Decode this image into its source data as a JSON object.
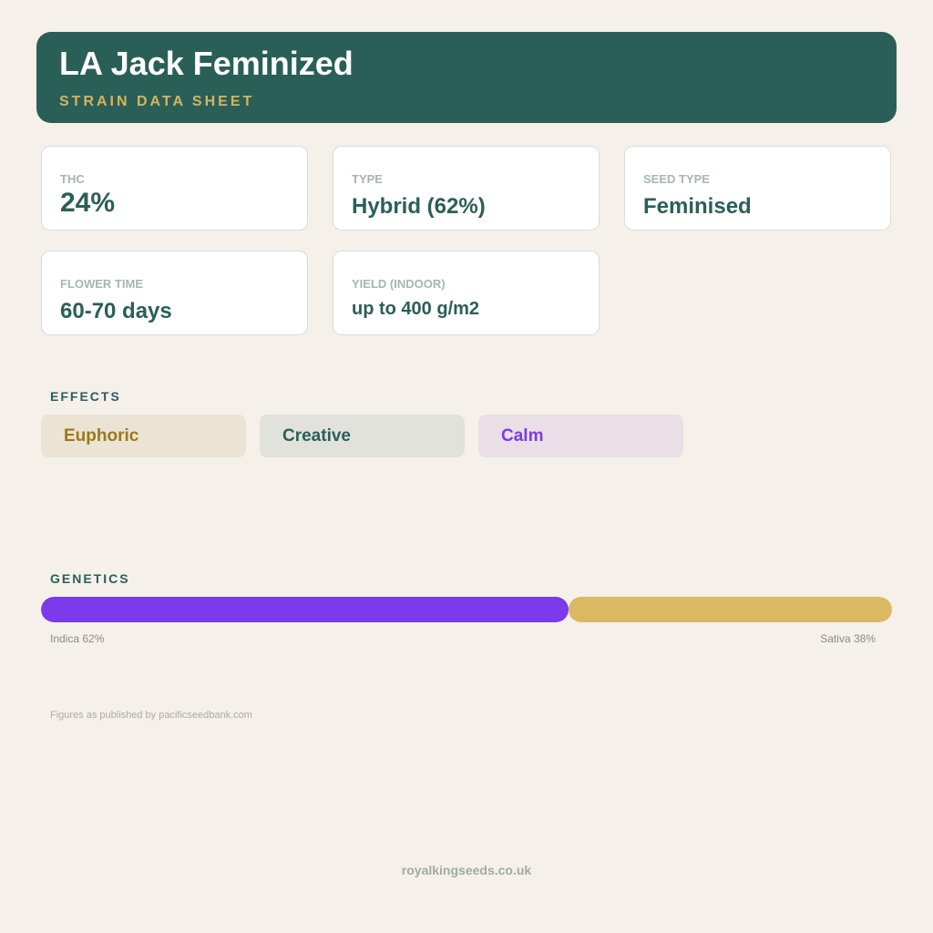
{
  "header": {
    "title": "LA Jack Feminized",
    "subtitle": "STRAIN DATA SHEET"
  },
  "stats": [
    {
      "label": "THC",
      "value": "24%"
    },
    {
      "label": "TYPE",
      "value": "Hybrid (62%)"
    },
    {
      "label": "SEED TYPE",
      "value": "Feminised"
    },
    {
      "label": "FLOWER TIME",
      "value": "60-70 days"
    },
    {
      "label": "YIELD (INDOOR)",
      "value": "up to 400 g/m2"
    }
  ],
  "effects": {
    "heading": "EFFECTS",
    "items": [
      "Euphoric",
      "Creative",
      "Calm"
    ]
  },
  "genetics": {
    "heading": "GENETICS",
    "segments": [
      {
        "label": "Indica 62%",
        "value": 62,
        "color": "#7c3aed"
      },
      {
        "label": "Sativa 38%",
        "value": 38,
        "color": "#dbb862"
      }
    ]
  },
  "footnote": "Figures as published by pacificseedbank.com",
  "footer": "royalkingseeds.co.uk"
}
